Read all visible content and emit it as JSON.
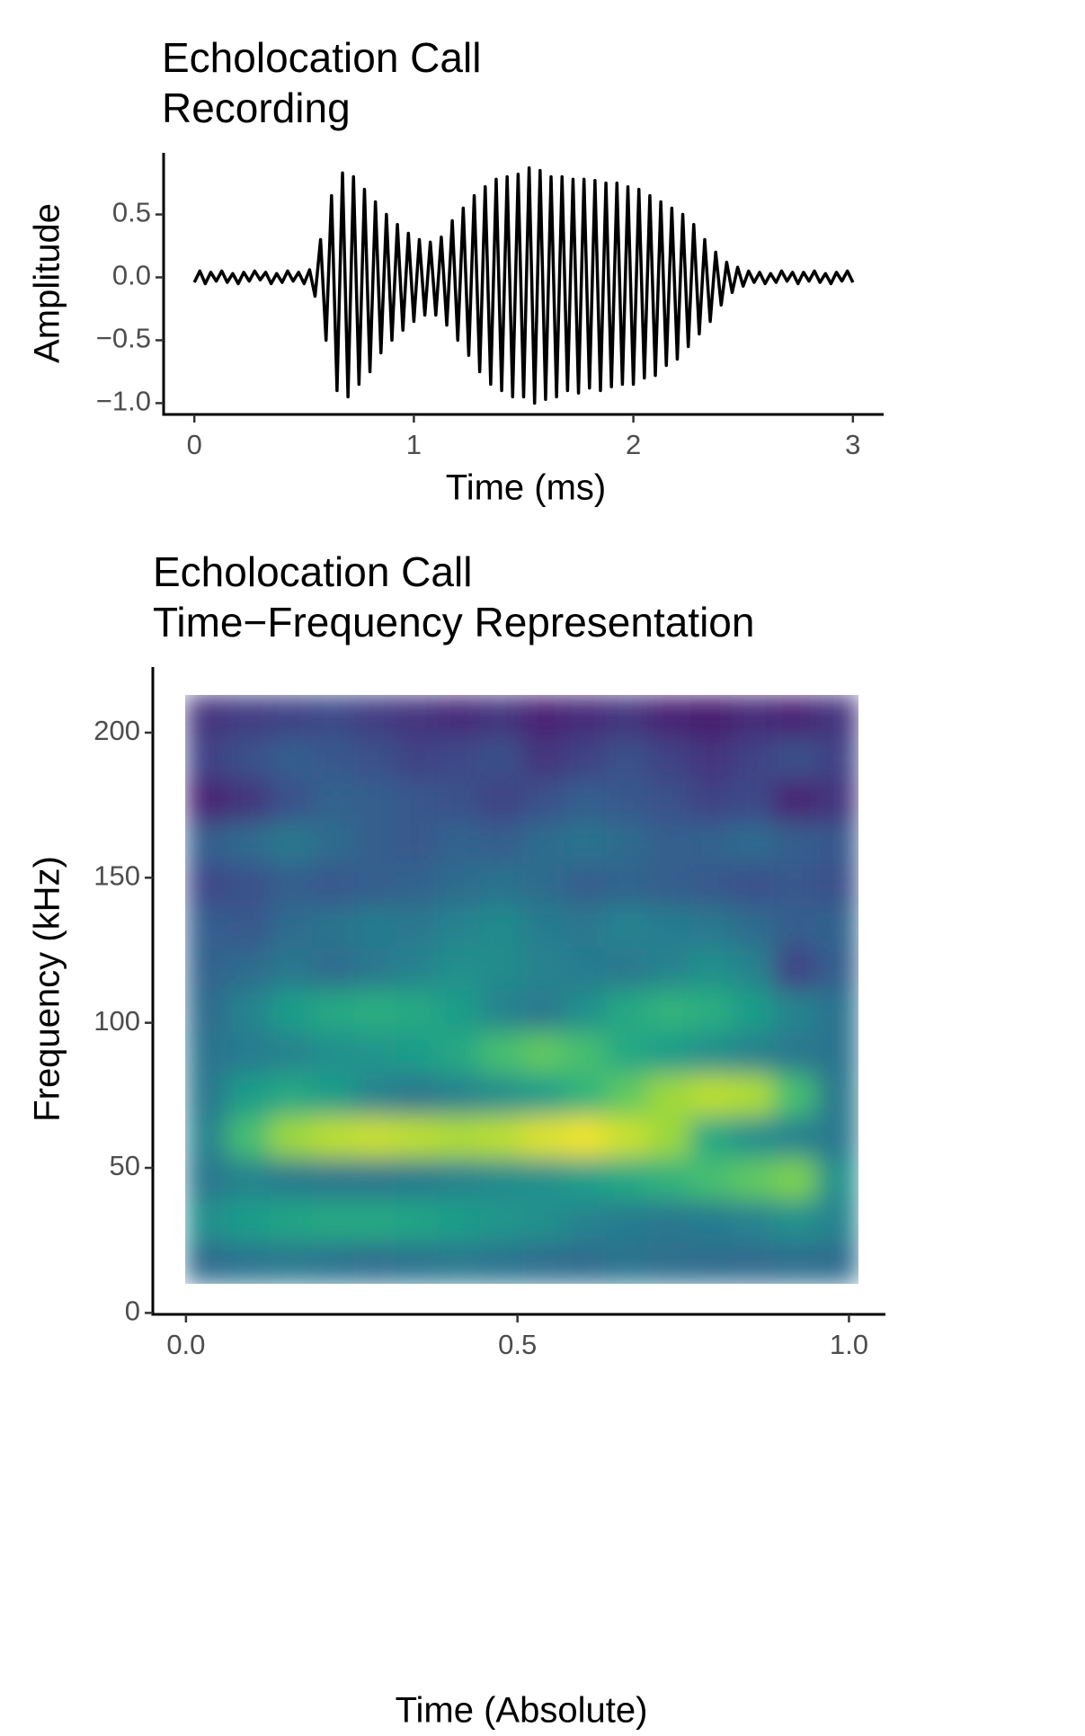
{
  "chart_data": [
    {
      "type": "line",
      "title": "Echolocation Call\nRecording",
      "xlabel": "Time (ms)",
      "ylabel": "Amplitude",
      "color": "#000000",
      "xlim": [
        -0.14,
        3.14
      ],
      "ylim": [
        -1.09,
        0.99
      ],
      "xticks": [
        0,
        1,
        2,
        3
      ],
      "yticks": [
        {
          "value": 0.5,
          "label": "0.5"
        },
        {
          "value": 0,
          "label": "0.0"
        },
        {
          "value": -0.5,
          "label": "−0.5"
        },
        {
          "value": -1,
          "label": "−1.0"
        }
      ],
      "x": [
        0,
        0.025,
        0.05,
        0.075,
        0.1,
        0.125,
        0.15,
        0.175,
        0.2,
        0.225,
        0.25,
        0.275,
        0.3,
        0.325,
        0.35,
        0.375,
        0.4,
        0.425,
        0.45,
        0.475,
        0.5,
        0.525,
        0.55,
        0.575,
        0.6,
        0.625,
        0.65,
        0.675,
        0.7,
        0.725,
        0.75,
        0.775,
        0.8,
        0.825,
        0.85,
        0.875,
        0.9,
        0.925,
        0.95,
        0.975,
        1,
        1.025,
        1.05,
        1.075,
        1.1,
        1.125,
        1.15,
        1.175,
        1.2,
        1.225,
        1.25,
        1.275,
        1.3,
        1.325,
        1.35,
        1.375,
        1.4,
        1.425,
        1.45,
        1.475,
        1.5,
        1.525,
        1.55,
        1.575,
        1.6,
        1.625,
        1.65,
        1.675,
        1.7,
        1.725,
        1.75,
        1.775,
        1.8,
        1.825,
        1.85,
        1.875,
        1.9,
        1.925,
        1.95,
        1.975,
        2,
        2.025,
        2.05,
        2.075,
        2.1,
        2.125,
        2.15,
        2.175,
        2.2,
        2.225,
        2.25,
        2.275,
        2.3,
        2.325,
        2.35,
        2.375,
        2.4,
        2.425,
        2.45,
        2.475,
        2.5,
        2.525,
        2.55,
        2.575,
        2.6,
        2.625,
        2.65,
        2.675,
        2.7,
        2.725,
        2.75,
        2.775,
        2.8,
        2.825,
        2.85,
        2.875,
        2.9,
        2.925,
        2.95,
        2.975,
        3
      ],
      "y": [
        -0.04,
        0.05,
        -0.05,
        0.04,
        -0.03,
        0.05,
        -0.04,
        0.03,
        -0.05,
        0.04,
        -0.03,
        0.05,
        -0.02,
        0.04,
        -0.05,
        0.03,
        -0.04,
        0.05,
        -0.03,
        0.04,
        -0.05,
        0.06,
        -0.15,
        0.3,
        -0.5,
        0.65,
        -0.9,
        0.83,
        -0.95,
        0.8,
        -0.85,
        0.7,
        -0.75,
        0.6,
        -0.6,
        0.5,
        -0.5,
        0.42,
        -0.42,
        0.35,
        -0.35,
        0.3,
        -0.3,
        0.28,
        -0.3,
        0.32,
        -0.38,
        0.45,
        -0.5,
        0.55,
        -0.62,
        0.65,
        -0.75,
        0.72,
        -0.85,
        0.78,
        -0.9,
        0.8,
        -0.95,
        0.82,
        -0.95,
        0.87,
        -1.0,
        0.85,
        -0.97,
        0.8,
        -0.95,
        0.8,
        -0.9,
        0.78,
        -0.92,
        0.78,
        -0.88,
        0.77,
        -0.9,
        0.75,
        -0.87,
        0.75,
        -0.85,
        0.72,
        -0.85,
        0.7,
        -0.8,
        0.65,
        -0.78,
        0.6,
        -0.7,
        0.55,
        -0.65,
        0.5,
        -0.55,
        0.42,
        -0.45,
        0.3,
        -0.35,
        0.2,
        -0.22,
        0.12,
        -0.12,
        0.08,
        -0.07,
        0.05,
        -0.04,
        0.04,
        -0.05,
        0.03,
        -0.04,
        0.05,
        -0.03,
        0.04,
        -0.05,
        0.04,
        -0.03,
        0.05,
        -0.04,
        0.03,
        -0.05,
        0.04,
        -0.03,
        0.05,
        -0.04
      ]
    },
    {
      "type": "heatmap",
      "title": "Echolocation Call\nTime−Frequency Representation",
      "xlabel": "Time (Absolute)",
      "ylabel": "Frequency (kHz)",
      "xlim": [
        -0.05,
        1.055
      ],
      "ylim": [
        -0.5,
        222.6
      ],
      "xticks": [
        {
          "value": 0,
          "label": "0.0"
        },
        {
          "value": 0.5,
          "label": "0.5"
        },
        {
          "value": 1,
          "label": "1.0"
        }
      ],
      "yticks": [
        0,
        50,
        100,
        150,
        200
      ],
      "colormap": [
        "#440154",
        "#482878",
        "#3e4989",
        "#31688e",
        "#26828e",
        "#1f9e89",
        "#35b779",
        "#6ece58",
        "#b5de2b",
        "#fde725"
      ],
      "xbins": [
        0,
        0.063,
        0.127,
        0.19,
        0.254,
        0.317,
        0.38,
        0.444,
        0.507,
        0.57,
        0.634,
        0.697,
        0.761,
        0.824,
        0.887,
        0.951,
        1.014
      ],
      "ybins": [
        10,
        24.5,
        39,
        53.5,
        68,
        82.5,
        97,
        111.5,
        126,
        140.5,
        155,
        169.5,
        184,
        198.5,
        213
      ],
      "z": [
        [
          0.35,
          0.38,
          0.4,
          0.38,
          0.36,
          0.38,
          0.4,
          0.38,
          0.36,
          0.35,
          0.38,
          0.36,
          0.35,
          0.34,
          0.36,
          0.35
        ],
        [
          0.5,
          0.55,
          0.58,
          0.6,
          0.6,
          0.58,
          0.55,
          0.52,
          0.5,
          0.45,
          0.42,
          0.4,
          0.42,
          0.45,
          0.5,
          0.45
        ],
        [
          0.4,
          0.45,
          0.42,
          0.4,
          0.4,
          0.42,
          0.45,
          0.48,
          0.5,
          0.55,
          0.6,
          0.65,
          0.7,
          0.75,
          0.8,
          0.5
        ],
        [
          0.45,
          0.7,
          0.85,
          0.9,
          0.92,
          0.9,
          0.88,
          0.9,
          0.95,
          0.98,
          0.92,
          0.85,
          0.6,
          0.5,
          0.45,
          0.4
        ],
        [
          0.4,
          0.55,
          0.6,
          0.55,
          0.45,
          0.4,
          0.45,
          0.5,
          0.55,
          0.65,
          0.75,
          0.85,
          0.9,
          0.88,
          0.7,
          0.4
        ],
        [
          0.38,
          0.42,
          0.45,
          0.5,
          0.52,
          0.55,
          0.6,
          0.7,
          0.75,
          0.7,
          0.6,
          0.55,
          0.5,
          0.45,
          0.4,
          0.38
        ],
        [
          0.35,
          0.45,
          0.55,
          0.6,
          0.62,
          0.6,
          0.55,
          0.45,
          0.4,
          0.5,
          0.6,
          0.65,
          0.62,
          0.55,
          0.45,
          0.38
        ],
        [
          0.32,
          0.35,
          0.4,
          0.35,
          0.4,
          0.45,
          0.5,
          0.48,
          0.45,
          0.42,
          0.4,
          0.45,
          0.5,
          0.45,
          0.2,
          0.3
        ],
        [
          0.3,
          0.28,
          0.35,
          0.38,
          0.42,
          0.4,
          0.45,
          0.48,
          0.42,
          0.4,
          0.45,
          0.42,
          0.4,
          0.35,
          0.3,
          0.32
        ],
        [
          0.22,
          0.25,
          0.3,
          0.28,
          0.3,
          0.32,
          0.35,
          0.38,
          0.35,
          0.3,
          0.32,
          0.3,
          0.28,
          0.25,
          0.28,
          0.25
        ],
        [
          0.3,
          0.35,
          0.4,
          0.35,
          0.3,
          0.28,
          0.32,
          0.3,
          0.35,
          0.38,
          0.35,
          0.3,
          0.32,
          0.35,
          0.3,
          0.28
        ],
        [
          0.1,
          0.15,
          0.25,
          0.32,
          0.3,
          0.28,
          0.25,
          0.2,
          0.25,
          0.3,
          0.28,
          0.25,
          0.2,
          0.22,
          0.1,
          0.15
        ],
        [
          0.2,
          0.25,
          0.3,
          0.28,
          0.25,
          0.2,
          0.22,
          0.25,
          0.15,
          0.2,
          0.25,
          0.2,
          0.15,
          0.2,
          0.25,
          0.2
        ],
        [
          0.15,
          0.18,
          0.2,
          0.22,
          0.18,
          0.15,
          0.12,
          0.15,
          0.1,
          0.12,
          0.15,
          0.1,
          0.08,
          0.12,
          0.1,
          0.15
        ]
      ]
    }
  ]
}
